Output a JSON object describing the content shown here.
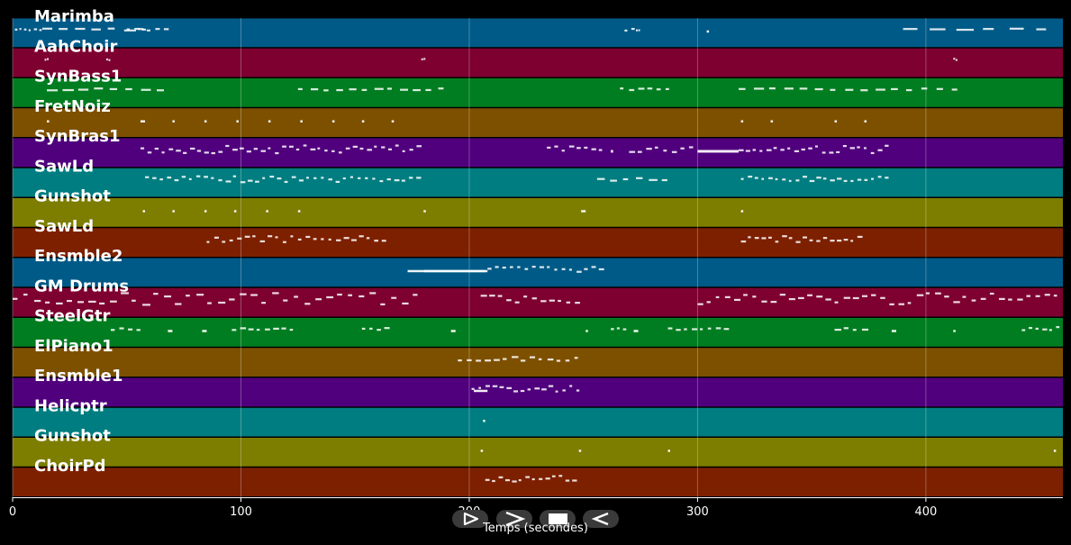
{
  "chart_data": {
    "type": "piano-roll",
    "xlabel": "Temps (secondes)",
    "xlim": [
      0,
      460
    ],
    "xticks": [
      0,
      100,
      200,
      300,
      400
    ],
    "grid": true,
    "tracks": [
      {
        "name": "Marimba",
        "color": "#005a87",
        "notes": [
          [
            1,
            7,
            3,
            1
          ],
          [
            7,
            14,
            3,
            1
          ],
          [
            13,
            56,
            6,
            1
          ],
          [
            50,
            60,
            3,
            1
          ],
          [
            55,
            70,
            4,
            1
          ],
          [
            268,
            274,
            2,
            2
          ],
          [
            273,
            275,
            2,
            1
          ],
          [
            304,
            305,
            1,
            1
          ],
          [
            390,
            460,
            6,
            1
          ]
        ]
      },
      {
        "name": "AahChoir",
        "color": "#7d0030",
        "notes": [
          [
            14,
            16,
            2,
            1
          ],
          [
            41,
            43,
            2,
            1
          ],
          [
            179,
            181,
            2,
            1
          ],
          [
            412,
            414,
            2,
            1
          ]
        ]
      },
      {
        "name": "SynBass1",
        "color": "#007d20",
        "notes": [
          [
            15,
            70,
            8,
            1
          ],
          [
            125,
            192,
            12,
            1
          ],
          [
            266,
            290,
            6,
            1
          ],
          [
            318,
            418,
            15,
            1
          ]
        ]
      },
      {
        "name": "FretNoiz",
        "color": "#7d5000",
        "notes": [
          [
            15,
            16,
            1,
            1
          ],
          [
            56,
            58,
            1,
            1
          ],
          [
            70,
            71,
            1,
            1
          ],
          [
            84,
            85,
            1,
            1
          ],
          [
            98,
            99,
            1,
            1
          ],
          [
            112,
            113,
            1,
            1
          ],
          [
            126,
            127,
            1,
            1
          ],
          [
            140,
            141,
            1,
            1
          ],
          [
            153,
            154,
            1,
            1
          ],
          [
            166,
            167,
            1,
            1
          ],
          [
            319,
            320,
            1,
            1
          ],
          [
            332,
            333,
            1,
            1
          ],
          [
            360,
            361,
            1,
            1
          ],
          [
            373,
            374,
            1,
            1
          ]
        ]
      },
      {
        "name": "SynBras1",
        "color": "#50007d",
        "notes": [
          [
            56,
            180,
            40,
            4
          ],
          [
            234,
            260,
            8,
            3
          ],
          [
            262,
            263,
            1,
            2
          ],
          [
            270,
            300,
            8,
            3
          ],
          [
            300,
            318,
            1,
            2
          ],
          [
            318,
            385,
            22,
            4
          ]
        ]
      },
      {
        "name": "SawLd",
        "color": "#007d80",
        "notes": [
          [
            58,
            180,
            38,
            3
          ],
          [
            256,
            290,
            6,
            2
          ],
          [
            319,
            385,
            22,
            3
          ]
        ]
      },
      {
        "name": "Gunshot",
        "color": "#7d7d00",
        "notes": [
          [
            57,
            58,
            1,
            1
          ],
          [
            70,
            71,
            1,
            1
          ],
          [
            84,
            85,
            1,
            1
          ],
          [
            97,
            98,
            1,
            1
          ],
          [
            111,
            112,
            1,
            1
          ],
          [
            125,
            126,
            1,
            1
          ],
          [
            180,
            181,
            1,
            1
          ],
          [
            249,
            251,
            1,
            1
          ],
          [
            319,
            320,
            1,
            1
          ]
        ]
      },
      {
        "name": "SawLd",
        "color": "#7d2000",
        "notes": [
          [
            85,
            165,
            24,
            3
          ],
          [
            319,
            373,
            18,
            3
          ]
        ]
      },
      {
        "name": "Ensmble2",
        "color": "#005a87",
        "notes": [
          [
            173,
            180,
            1,
            1
          ],
          [
            180,
            208,
            1,
            1
          ],
          [
            180,
            207,
            1,
            1
          ],
          [
            208,
            260,
            16,
            3
          ]
        ]
      },
      {
        "name": "GM Drums",
        "color": "#7d0030",
        "notes": [
          [
            0,
            180,
            38,
            6
          ],
          [
            205,
            250,
            12,
            4
          ],
          [
            300,
            460,
            40,
            6
          ]
        ]
      },
      {
        "name": "SteelGtr",
        "color": "#007d20",
        "notes": [
          [
            43,
            58,
            4,
            1
          ],
          [
            68,
            70,
            1,
            1
          ],
          [
            83,
            85,
            1,
            1
          ],
          [
            96,
            125,
            8,
            1
          ],
          [
            153,
            166,
            4,
            1
          ],
          [
            192,
            194,
            1,
            1
          ],
          [
            251,
            252,
            1,
            1
          ],
          [
            262,
            270,
            3,
            1
          ],
          [
            272,
            274,
            1,
            1
          ],
          [
            287,
            315,
            8,
            1
          ],
          [
            360,
            376,
            4,
            1
          ],
          [
            385,
            387,
            1,
            1
          ],
          [
            412,
            413,
            1,
            1
          ],
          [
            442,
            460,
            6,
            2
          ]
        ]
      },
      {
        "name": "ElPiano1",
        "color": "#7d5000",
        "notes": [
          [
            195,
            250,
            14,
            2
          ]
        ]
      },
      {
        "name": "Ensmble1",
        "color": "#50007d",
        "notes": [
          [
            202,
            208,
            1,
            1
          ],
          [
            201,
            250,
            16,
            3
          ]
        ]
      },
      {
        "name": "Helicptr",
        "color": "#007d80",
        "notes": [
          [
            206,
            207,
            1,
            1
          ]
        ]
      },
      {
        "name": "Gunshot",
        "color": "#7d7d00",
        "notes": [
          [
            205,
            206,
            1,
            1
          ],
          [
            248,
            249,
            1,
            1
          ],
          [
            287,
            288,
            1,
            1
          ],
          [
            456,
            457,
            1,
            1
          ]
        ]
      },
      {
        "name": "ChoirPd",
        "color": "#7d2000",
        "notes": [
          [
            207,
            248,
            14,
            3
          ]
        ]
      }
    ]
  },
  "transport": {
    "buttons": [
      {
        "name": "play-step-icon",
        "glyph": "play-outline"
      },
      {
        "name": "forward-icon",
        "glyph": "chevron-right"
      },
      {
        "name": "stop-icon",
        "glyph": "stop"
      },
      {
        "name": "rewind-icon",
        "glyph": "play-back"
      }
    ]
  }
}
